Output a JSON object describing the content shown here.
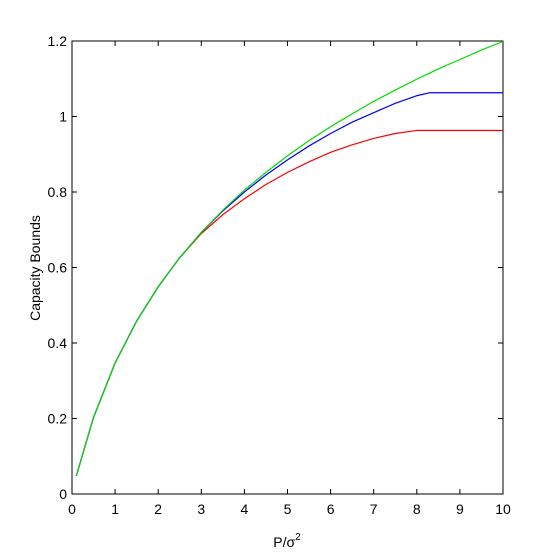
{
  "chart_data": {
    "type": "line",
    "y_label": "Capacity Bounds",
    "x_label": "P/σ",
    "x_label_superscript": "2",
    "x": [
      0.1,
      0.5,
      1,
      1.5,
      2,
      2.5,
      3,
      3.5,
      4,
      4.5,
      5,
      5.5,
      6,
      6.5,
      7,
      7.5,
      8,
      8.3,
      8.5,
      9,
      9.5,
      10
    ],
    "series": [
      {
        "color": "#ff0000",
        "values": [
          0.048,
          0.203,
          0.347,
          0.458,
          0.549,
          0.626,
          0.69,
          0.74,
          0.782,
          0.82,
          0.852,
          0.88,
          0.905,
          0.925,
          0.942,
          0.955,
          0.963,
          0.963,
          0.963,
          0.963,
          0.963,
          0.963
        ]
      },
      {
        "color": "#0000ff",
        "values": [
          0.048,
          0.203,
          0.347,
          0.458,
          0.549,
          0.626,
          0.693,
          0.75,
          0.8,
          0.845,
          0.885,
          0.922,
          0.955,
          0.985,
          1.01,
          1.035,
          1.055,
          1.063,
          1.063,
          1.063,
          1.063,
          1.063
        ]
      },
      {
        "color": "#00dd00",
        "values": [
          0.048,
          0.203,
          0.347,
          0.458,
          0.549,
          0.626,
          0.693,
          0.752,
          0.805,
          0.852,
          0.896,
          0.936,
          0.973,
          1.007,
          1.04,
          1.07,
          1.099,
          1.115,
          1.126,
          1.151,
          1.176,
          1.199
        ]
      }
    ],
    "xlim": [
      0,
      10
    ],
    "xticks": [
      0,
      1,
      2,
      3,
      4,
      5,
      6,
      7,
      8,
      9,
      10
    ],
    "ylim": [
      0,
      1.2
    ],
    "yticks": [
      0,
      0.2,
      0.4,
      0.6,
      0.8,
      1,
      1.2
    ],
    "grid": false
  }
}
